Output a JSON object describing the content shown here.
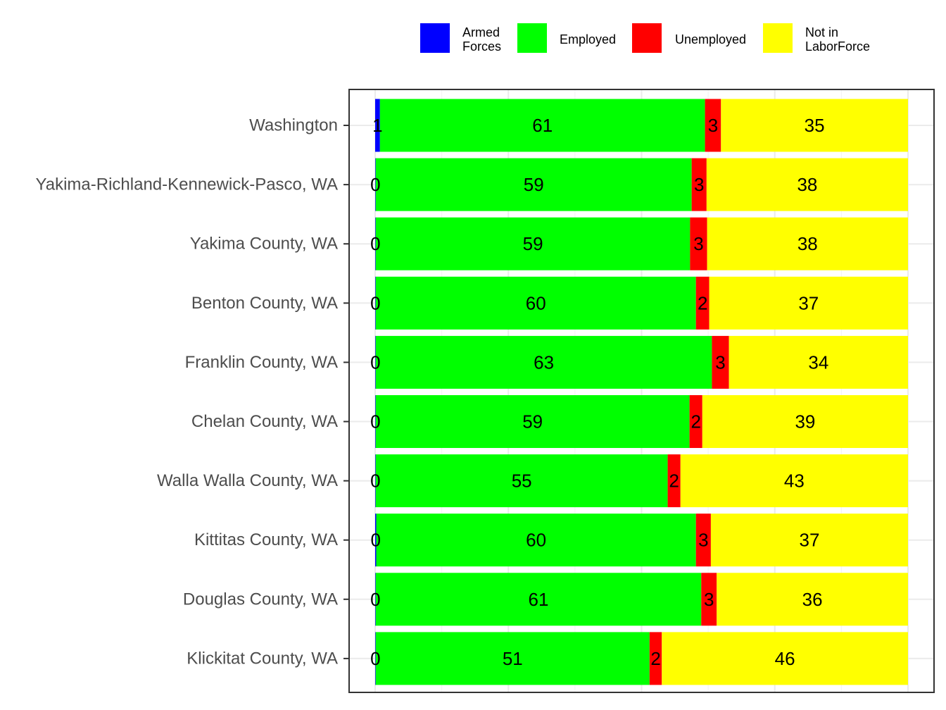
{
  "chart_data": {
    "type": "bar",
    "orientation": "horizontal",
    "stacked": true,
    "title": "",
    "xlabel": "",
    "ylabel": "",
    "xlim": [
      0,
      100
    ],
    "grid": true,
    "legend_position": "top",
    "categories": [
      "Washington",
      "Yakima-Richland-Kennewick-Pasco, WA",
      "Yakima County, WA",
      "Benton County, WA",
      "Franklin County, WA",
      "Chelan County, WA",
      "Walla Walla County, WA",
      "Kittitas County, WA",
      "Douglas County, WA",
      "Klickitat County, WA"
    ],
    "series": [
      {
        "name": "Armed\nForces",
        "color": "#0000FF",
        "values": [
          0.9,
          0.1,
          0.1,
          0.1,
          0.1,
          0.1,
          0.1,
          0.2,
          0.1,
          0.1
        ],
        "labels": [
          "1",
          "0",
          "0",
          "0",
          "0",
          "0",
          "0",
          "0",
          "0",
          "0"
        ]
      },
      {
        "name": "Employed",
        "color": "#00FF00",
        "values": [
          61.0,
          59.3,
          59.0,
          60.1,
          63.1,
          58.9,
          54.8,
          60.0,
          61.1,
          51.4
        ],
        "labels": [
          "61",
          "59",
          "59",
          "60",
          "63",
          "59",
          "55",
          "60",
          "61",
          "51"
        ]
      },
      {
        "name": "Unemployed",
        "color": "#FF0000",
        "values": [
          3.0,
          2.8,
          3.2,
          2.5,
          3.2,
          2.4,
          2.4,
          2.8,
          2.9,
          2.3
        ],
        "labels": [
          "3",
          "3",
          "3",
          "2",
          "3",
          "2",
          "2",
          "3",
          "3",
          "2"
        ]
      },
      {
        "name": "Not in\nLaborForce",
        "color": "#FFFF00",
        "values": [
          35.1,
          37.8,
          37.7,
          37.3,
          33.6,
          38.6,
          42.7,
          37.0,
          35.9,
          46.2
        ],
        "labels": [
          "35",
          "38",
          "38",
          "37",
          "34",
          "39",
          "43",
          "37",
          "36",
          "46"
        ]
      }
    ]
  }
}
